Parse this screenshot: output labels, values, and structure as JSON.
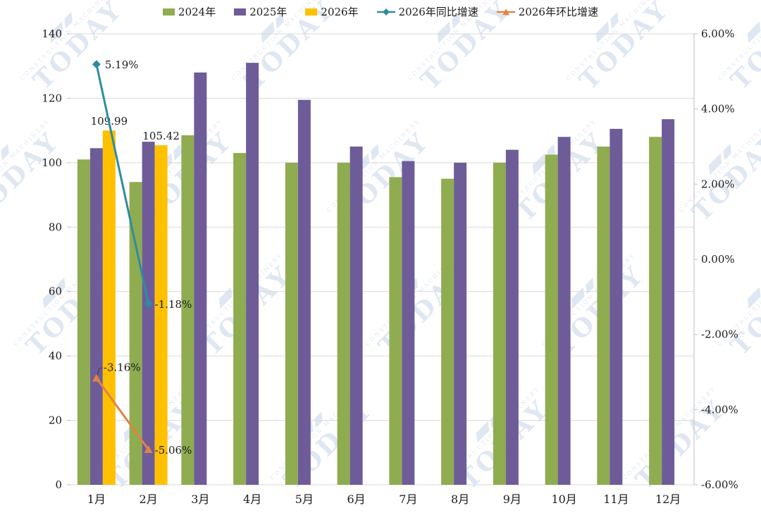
{
  "legend": {
    "items": [
      {
        "label": "2024年",
        "type": "bar",
        "color": "#8FAC50"
      },
      {
        "label": "2025年",
        "type": "bar",
        "color": "#6E5C99"
      },
      {
        "label": "2026年",
        "type": "bar",
        "color": "#FFC000"
      },
      {
        "label": "2026年同比增速",
        "type": "line",
        "marker": "diamond",
        "color": "#2F8CA0"
      },
      {
        "label": "2026年环比增速",
        "type": "line",
        "marker": "triangle",
        "color": "#DF8344"
      }
    ]
  },
  "chart_data": {
    "type": "bar",
    "subtype": "grouped monthly bars with two line series on secondary percent axis",
    "categories": [
      "1月",
      "2月",
      "3月",
      "4月",
      "5月",
      "6月",
      "7月",
      "8月",
      "9月",
      "10月",
      "11月",
      "12月"
    ],
    "series": [
      {
        "name": "2024年",
        "type": "bar",
        "axis": "left",
        "color": "#8FAC50",
        "values": [
          101,
          94,
          108.5,
          103,
          100,
          100,
          95.5,
          95,
          100,
          102.5,
          105,
          108
        ]
      },
      {
        "name": "2025年",
        "type": "bar",
        "axis": "left",
        "color": "#6E5C99",
        "values": [
          104.5,
          106.5,
          128,
          131,
          119.5,
          105,
          100.5,
          100,
          104,
          108,
          110.5,
          113.5
        ]
      },
      {
        "name": "2026年",
        "type": "bar",
        "axis": "left",
        "color": "#FFC000",
        "values": [
          109.99,
          105.42,
          null,
          null,
          null,
          null,
          null,
          null,
          null,
          null,
          null,
          null
        ],
        "data_labels": [
          "109.99",
          "105.42"
        ]
      },
      {
        "name": "2026年同比增速",
        "type": "line",
        "axis": "right",
        "color": "#2F8CA0",
        "marker": "diamond",
        "values": [
          5.19,
          -1.18,
          null,
          null,
          null,
          null,
          null,
          null,
          null,
          null,
          null,
          null
        ],
        "data_labels": [
          "5.19%",
          "-1.18%"
        ]
      },
      {
        "name": "2026年环比增速",
        "type": "line",
        "axis": "right",
        "color": "#DF8344",
        "marker": "triangle",
        "values": [
          -3.16,
          -5.06,
          null,
          null,
          null,
          null,
          null,
          null,
          null,
          null,
          null,
          null
        ],
        "data_labels": [
          "-3.16%",
          "-5.06%"
        ]
      }
    ],
    "left_axis": {
      "min": 0,
      "max": 140,
      "step": 20,
      "tick_labels": [
        "0",
        "20",
        "40",
        "60",
        "80",
        "100",
        "120",
        "140"
      ]
    },
    "right_axis": {
      "min": -6,
      "max": 6,
      "step": 2,
      "tick_labels": [
        "6.00%",
        "4.00%",
        "2.00%",
        "0.00%",
        "-2.00%",
        "-4.00%",
        "-6.00%"
      ]
    },
    "grid": "horizontal",
    "legend_position": "top"
  },
  "watermark": {
    "small_text": "CONSTRUCTION MACHINERY",
    "big_text": "TODAY"
  }
}
